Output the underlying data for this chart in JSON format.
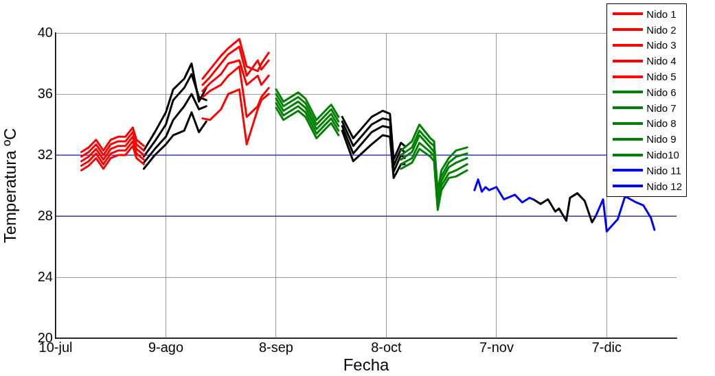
{
  "chart_data": {
    "type": "line",
    "xlabel": "Fecha",
    "ylabel": "Temperatura ºC",
    "xlim": [
      "--07-10",
      "--12-26"
    ],
    "xticks": [
      {
        "value": "--07-10",
        "label": "10-jul"
      },
      {
        "value": "--08-09",
        "label": "9-ago"
      },
      {
        "value": "--09-08",
        "label": "8-sep"
      },
      {
        "value": "--10-08",
        "label": "8-oct"
      },
      {
        "value": "--11-07",
        "label": "7-nov"
      },
      {
        "value": "--12-07",
        "label": "7-dic"
      }
    ],
    "ylim": [
      20,
      40
    ],
    "yticks": [
      20,
      24,
      28,
      32,
      36,
      40
    ],
    "grid": true,
    "legend": "top right",
    "marker": "none",
    "line_style": "solid",
    "ref_lines": [
      {
        "axis": "y",
        "value": 32,
        "color": "#0000ff"
      },
      {
        "axis": "y",
        "value": 28,
        "color": "#000080"
      }
    ],
    "series": [
      {
        "name": "Nido 1",
        "color": "#ff0000",
        "x": [
          "--07-17",
          "--07-19",
          "--07-21",
          "--07-23",
          "--07-25",
          "--07-27",
          "--07-29",
          "--07-31",
          "--08-01",
          "--08-03",
          "--08-10",
          "--08-19",
          "--08-21",
          "--08-24",
          "--08-26",
          "--08-29",
          "--08-31",
          "--09-03",
          "--09-04",
          "--09-06"
        ],
        "values": [
          32.2,
          32.5,
          33.0,
          32.3,
          33.0,
          33.2,
          33.2,
          33.8,
          33.0,
          32.6,
          null,
          37.0,
          37.6,
          38.5,
          39.0,
          39.6,
          37.8,
          37.5,
          38.0,
          38.7
        ]
      },
      {
        "name": "Nido 2",
        "color": "#ff0000",
        "x": [
          "--07-17",
          "--07-19",
          "--07-21",
          "--07-23",
          "--07-25",
          "--07-27",
          "--07-29",
          "--07-31",
          "--08-01",
          "--08-03",
          "--08-10",
          "--08-19",
          "--08-21",
          "--08-24",
          "--08-26",
          "--08-29",
          "--08-31",
          "--09-03",
          "--09-04",
          "--09-06"
        ],
        "values": [
          31.9,
          32.2,
          32.7,
          32.0,
          32.7,
          32.9,
          32.9,
          33.5,
          32.7,
          32.3,
          null,
          36.6,
          37.1,
          38.0,
          38.6,
          39.1,
          37.2,
          38.2,
          37.6,
          38.2
        ]
      },
      {
        "name": "Nido 3",
        "color": "#ff0000",
        "x": [
          "--07-17",
          "--07-19",
          "--07-21",
          "--07-23",
          "--07-25",
          "--07-27",
          "--07-29",
          "--07-31",
          "--08-01",
          "--08-03",
          "--08-10",
          "--08-19",
          "--08-21",
          "--08-24",
          "--08-26",
          "--08-29",
          "--08-31",
          "--09-03",
          "--09-04",
          "--09-06"
        ],
        "values": [
          31.6,
          31.9,
          32.4,
          31.7,
          32.4,
          32.6,
          32.6,
          33.2,
          32.4,
          32.0,
          null,
          36.2,
          36.7,
          37.3,
          38.0,
          38.2,
          36.6,
          37.2,
          36.6,
          37.2
        ]
      },
      {
        "name": "Nido 4",
        "color": "#ff0000",
        "x": [
          "--07-17",
          "--07-19",
          "--07-21",
          "--07-23",
          "--07-25",
          "--07-27",
          "--07-29",
          "--07-31",
          "--08-01",
          "--08-03",
          "--08-10",
          "--08-19",
          "--08-21",
          "--08-24",
          "--08-26",
          "--08-29",
          "--08-31",
          "--09-03",
          "--09-04",
          "--09-06"
        ],
        "values": [
          31.3,
          31.6,
          32.1,
          31.4,
          32.1,
          32.3,
          32.3,
          32.9,
          32.1,
          31.7,
          null,
          35.8,
          36.2,
          36.6,
          37.2,
          37.8,
          34.5,
          35.2,
          35.8,
          36.4
        ]
      },
      {
        "name": "Nido 5",
        "color": "#ff0000",
        "x": [
          "--07-17",
          "--07-19",
          "--07-21",
          "--07-23",
          "--07-25",
          "--07-27",
          "--07-29",
          "--07-31",
          "--08-01",
          "--08-03",
          "--08-10",
          "--08-19",
          "--08-21",
          "--08-24",
          "--08-26",
          "--08-29",
          "--08-31",
          "--09-03",
          "--09-04",
          "--09-06"
        ],
        "values": [
          31.0,
          31.3,
          31.8,
          31.1,
          31.8,
          32.0,
          32.0,
          32.6,
          31.8,
          31.4,
          null,
          34.4,
          34.3,
          35.0,
          36.0,
          36.3,
          32.7,
          35.0,
          35.6,
          36.0
        ]
      },
      {
        "name": "Nido 6",
        "color": "#008000",
        "x": [
          "--09-08",
          "--09-10",
          "--09-14",
          "--09-16",
          "--09-19",
          "--09-23",
          "--09-25",
          "--10-05",
          "--10-12",
          "--10-15",
          "--10-17",
          "--10-20",
          "--10-21",
          "--10-22",
          "--10-23",
          "--10-25",
          "--10-27",
          "--10-30"
        ],
        "values": [
          36.3,
          35.5,
          36.1,
          35.7,
          34.3,
          35.3,
          34.5,
          null,
          32.3,
          32.9,
          34.0,
          33.1,
          32.9,
          29.6,
          31.0,
          31.8,
          32.3,
          32.5
        ]
      },
      {
        "name": "Nido 7",
        "color": "#008000",
        "x": [
          "--09-08",
          "--09-10",
          "--09-14",
          "--09-16",
          "--09-19",
          "--09-23",
          "--09-25",
          "--10-05",
          "--10-12",
          "--10-15",
          "--10-17",
          "--10-20",
          "--10-21",
          "--10-22",
          "--10-23",
          "--10-25",
          "--10-27",
          "--10-30"
        ],
        "values": [
          36.0,
          35.2,
          35.8,
          35.4,
          34.0,
          35.0,
          34.2,
          null,
          32.0,
          32.5,
          33.6,
          32.8,
          32.6,
          29.3,
          30.6,
          31.5,
          31.9,
          32.1
        ]
      },
      {
        "name": "Nido 8",
        "color": "#008000",
        "x": [
          "--09-08",
          "--09-10",
          "--09-14",
          "--09-16",
          "--09-19",
          "--09-23",
          "--09-25",
          "--10-05",
          "--10-12",
          "--10-15",
          "--10-17",
          "--10-20",
          "--10-21",
          "--10-22",
          "--10-23",
          "--10-25",
          "--10-27",
          "--10-30"
        ],
        "values": [
          35.7,
          34.9,
          35.5,
          35.1,
          33.7,
          34.7,
          33.9,
          null,
          31.7,
          32.2,
          33.3,
          32.5,
          32.2,
          29.0,
          30.3,
          31.2,
          31.5,
          31.8
        ]
      },
      {
        "name": "Nido 9",
        "color": "#008000",
        "x": [
          "--09-08",
          "--09-10",
          "--09-14",
          "--09-16",
          "--09-19",
          "--09-23",
          "--09-25",
          "--10-05",
          "--10-12",
          "--10-15",
          "--10-17",
          "--10-20",
          "--10-21",
          "--10-22",
          "--10-23",
          "--10-25",
          "--10-27",
          "--10-30"
        ],
        "values": [
          35.4,
          34.6,
          35.2,
          34.8,
          33.4,
          34.4,
          33.6,
          null,
          31.4,
          31.8,
          32.8,
          32.2,
          31.9,
          28.7,
          30.0,
          30.8,
          31.0,
          31.4
        ]
      },
      {
        "name": "Nido10",
        "color": "#008000",
        "x": [
          "--09-08",
          "--09-10",
          "--09-14",
          "--09-16",
          "--09-19",
          "--09-23",
          "--09-25",
          "--10-05",
          "--10-12",
          "--10-15",
          "--10-17",
          "--10-20",
          "--10-21",
          "--10-22",
          "--10-23",
          "--10-25",
          "--10-27",
          "--10-30"
        ],
        "values": [
          35.1,
          34.3,
          34.9,
          34.5,
          33.1,
          34.1,
          33.3,
          null,
          31.1,
          31.5,
          32.4,
          31.9,
          31.6,
          28.4,
          29.7,
          30.5,
          30.6,
          31.0
        ]
      },
      {
        "name": "Nido 11",
        "color": "#0000ff",
        "x": [
          "--11-01",
          "--11-02",
          "--11-03",
          "--11-04",
          "--11-05",
          "--11-07",
          "--11-09",
          "--11-12",
          "--11-14",
          "--11-16",
          "--11-17"
        ],
        "values": [
          29.7,
          30.4,
          29.6,
          29.9,
          29.7,
          29.9,
          29.1,
          29.4,
          28.9,
          29.2,
          29.1
        ]
      },
      {
        "name": "Nido 12",
        "color": "#0000ff",
        "x": [
          "--12-04",
          "--12-06",
          "--12-07",
          "--12-10",
          "--12-12",
          "--12-15",
          "--12-17",
          "--12-19",
          "--12-20"
        ],
        "values": [
          28.0,
          29.1,
          27.0,
          27.8,
          29.3,
          28.9,
          28.7,
          27.9,
          27.1
        ]
      },
      {
        "color": "#000000",
        "x": [
          "--08-03",
          "--08-06",
          "--08-09",
          "--08-11",
          "--08-14",
          "--08-16",
          "--08-18",
          "--08-20",
          "--08-30",
          "--09-26",
          "--09-29",
          "--10-04",
          "--10-07",
          "--10-09",
          "--10-10",
          "--10-12",
          "--10-13",
          "--11-01",
          "--11-17",
          "--11-19",
          "--11-21",
          "--11-23",
          "--11-24",
          "--11-26",
          "--11-27",
          "--11-29",
          "--12-01",
          "--12-03",
          "--12-04"
        ],
        "values": [
          32.3,
          33.5,
          34.8,
          36.3,
          37.0,
          38.0,
          35.5,
          36.4,
          null,
          34.5,
          33.1,
          34.5,
          34.9,
          34.7,
          31.7,
          32.8,
          32.6,
          null,
          29.1,
          28.8,
          29.1,
          28.3,
          28.5,
          27.7,
          29.2,
          29.5,
          29.0,
          27.6,
          28.0
        ]
      },
      {
        "color": "#000000",
        "x": [
          "--08-03",
          "--08-06",
          "--08-09",
          "--08-11",
          "--08-14",
          "--08-16",
          "--08-18",
          "--08-20",
          "--08-30",
          "--09-26",
          "--09-29",
          "--10-04",
          "--10-07",
          "--10-09",
          "--10-10",
          "--10-12",
          "--10-13"
        ],
        "values": [
          31.9,
          32.9,
          34.0,
          35.6,
          36.4,
          37.3,
          35.8,
          35.6,
          null,
          34.2,
          32.6,
          34.0,
          34.4,
          34.3,
          31.3,
          32.4,
          32.2
        ]
      },
      {
        "color": "#000000",
        "x": [
          "--08-03",
          "--08-06",
          "--08-09",
          "--08-11",
          "--08-14",
          "--08-16",
          "--08-18",
          "--08-20",
          "--08-30",
          "--09-26",
          "--09-29",
          "--10-04",
          "--10-07",
          "--10-09",
          "--10-10",
          "--10-12",
          "--10-13"
        ],
        "values": [
          31.5,
          32.4,
          33.2,
          34.3,
          35.2,
          36.0,
          35.0,
          35.2,
          null,
          33.9,
          32.1,
          33.5,
          33.9,
          33.8,
          30.9,
          32.0,
          31.8
        ]
      },
      {
        "color": "#000000",
        "x": [
          "--08-03",
          "--08-06",
          "--08-09",
          "--08-11",
          "--08-14",
          "--08-16",
          "--08-18",
          "--08-20",
          "--08-30",
          "--09-26",
          "--09-29",
          "--10-04",
          "--10-07",
          "--10-09",
          "--10-10",
          "--10-12",
          "--10-13"
        ],
        "values": [
          31.1,
          32.0,
          32.7,
          33.3,
          33.6,
          34.8,
          33.5,
          34.2,
          null,
          33.6,
          31.6,
          32.7,
          33.3,
          33.2,
          30.5,
          31.4,
          31.4
        ]
      }
    ]
  }
}
